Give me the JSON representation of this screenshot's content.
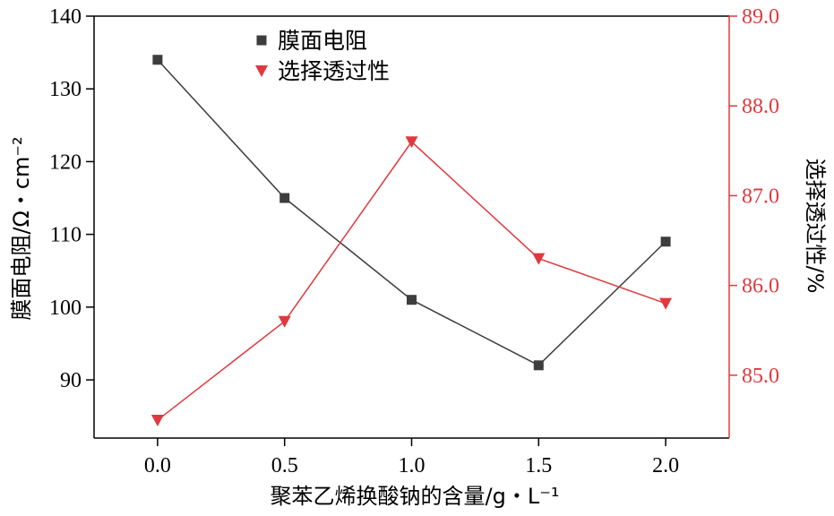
{
  "chart_data": {
    "type": "line",
    "x": [
      0.0,
      0.5,
      1.0,
      1.5,
      2.0
    ],
    "x_tick_labels": [
      "0.0",
      "0.5",
      "1.0",
      "1.5",
      "2.0"
    ],
    "xlim": [
      -0.25,
      2.25
    ],
    "xlabel": "聚苯乙烯换酸钠的含量/g・L⁻¹",
    "y_left": {
      "label": "膜面电阻/Ω・cm⁻²",
      "lim": [
        82,
        140
      ],
      "ticks": [
        90,
        100,
        110,
        120,
        130,
        140
      ],
      "tick_labels": [
        "90",
        "100",
        "110",
        "120",
        "130",
        "140"
      ],
      "color": "#000000"
    },
    "y_right": {
      "label": "选择透过性/%",
      "lim": [
        84.3,
        89.0
      ],
      "ticks": [
        85.0,
        86.0,
        87.0,
        88.0,
        89.0
      ],
      "tick_labels": [
        "85.0",
        "86.0",
        "87.0",
        "88.0",
        "89.0"
      ],
      "color": "#e0383e"
    },
    "series": [
      {
        "name": "膜面电阻",
        "axis": "left",
        "marker": "square",
        "color": "#3d3d3d",
        "values": [
          134,
          115,
          101,
          92,
          109
        ]
      },
      {
        "name": "选择透过性",
        "axis": "right",
        "marker": "triangle-down",
        "color": "#e0383e",
        "values": [
          84.5,
          85.6,
          87.6,
          86.3,
          85.8
        ]
      }
    ],
    "legend_position": "top-center",
    "grid": false
  }
}
